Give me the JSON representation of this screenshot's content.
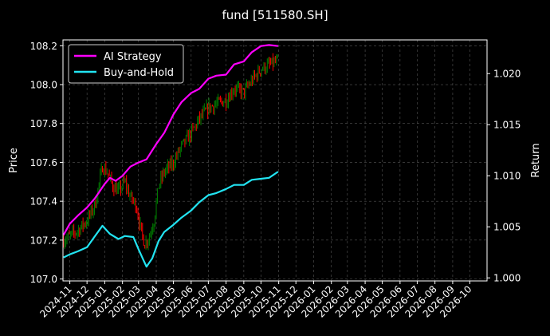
{
  "chart_data": {
    "type": "line",
    "title": "fund [511580.SH]",
    "ylabel_left": "Price",
    "ylabel_right": "Return",
    "x_ticks": [
      "2024-11",
      "2024-12",
      "2025-01",
      "2025-02",
      "2025-03",
      "2025-04",
      "2025-05",
      "2025-06",
      "2025-07",
      "2025-08",
      "2025-09",
      "2025-10",
      "2025-11",
      "2025-12",
      "2026-01",
      "2026-02",
      "2026-03",
      "2026-04",
      "2026-05",
      "2026-06",
      "2026-07",
      "2026-08",
      "2026-09",
      "2026-10"
    ],
    "xlim": [
      "2024-10-20",
      "2026-10-31"
    ],
    "y_left_ticks": [
      "107.0",
      "107.2",
      "107.4",
      "107.6",
      "107.8",
      "108.0",
      "108.2"
    ],
    "y_left_range": [
      106.99,
      108.23
    ],
    "y_right_ticks": [
      "1.000",
      "1.005",
      "1.010",
      "1.015",
      "1.020"
    ],
    "y_right_range": [
      0.9997,
      1.0233
    ],
    "grid": true,
    "legend_position": "top-left",
    "colors": {
      "ai_strategy": "#ff00ff",
      "buy_and_hold": "#22e4f2",
      "candle_up": "#008000",
      "candle_down": "#ff0000",
      "grid": "#555555",
      "axes": "#ffffff"
    },
    "series": [
      {
        "name": "AI Strategy",
        "axis": "right",
        "color": "#ff00ff",
        "x": [
          "2024-10-21",
          "2024-11-01",
          "2024-11-15",
          "2024-12-01",
          "2024-12-15",
          "2025-01-01",
          "2025-01-10",
          "2025-01-20",
          "2025-02-01",
          "2025-02-15",
          "2025-03-01",
          "2025-03-15",
          "2025-04-01",
          "2025-04-15",
          "2025-05-01",
          "2025-05-15",
          "2025-06-01",
          "2025-06-15",
          "2025-07-01",
          "2025-07-15",
          "2025-08-01",
          "2025-08-15",
          "2025-09-01",
          "2025-09-15",
          "2025-10-01",
          "2025-10-15",
          "2025-10-31"
        ],
        "values": [
          1.0042,
          1.0053,
          1.0061,
          1.0069,
          1.0078,
          1.0092,
          1.0098,
          1.0095,
          1.01,
          1.0109,
          1.0113,
          1.0116,
          1.0131,
          1.0142,
          1.016,
          1.0172,
          1.0181,
          1.0185,
          1.0195,
          1.0198,
          1.0199,
          1.0209,
          1.0212,
          1.0221,
          1.0227,
          1.0228,
          1.0227
        ]
      },
      {
        "name": "Buy-and-Hold",
        "axis": "right",
        "color": "#22e4f2",
        "x": [
          "2024-10-21",
          "2024-11-01",
          "2024-11-15",
          "2024-12-01",
          "2024-12-15",
          "2024-12-28",
          "2025-01-10",
          "2025-01-25",
          "2025-02-05",
          "2025-02-20",
          "2025-03-01",
          "2025-03-10",
          "2025-03-15",
          "2025-03-25",
          "2025-04-05",
          "2025-04-15",
          "2025-05-01",
          "2025-05-15",
          "2025-06-01",
          "2025-06-15",
          "2025-07-01",
          "2025-07-15",
          "2025-08-01",
          "2025-08-15",
          "2025-09-01",
          "2025-09-15",
          "2025-10-01",
          "2025-10-15",
          "2025-10-31"
        ],
        "values": [
          1.002,
          1.0023,
          1.0026,
          1.003,
          1.0041,
          1.0051,
          1.0043,
          1.0038,
          1.0041,
          1.004,
          1.0028,
          1.0017,
          1.0011,
          1.0019,
          1.0036,
          1.0045,
          1.0052,
          1.0059,
          1.0066,
          1.0074,
          1.0081,
          1.0083,
          1.0087,
          1.0091,
          1.0091,
          1.0096,
          1.0097,
          1.0098,
          1.0104
        ]
      },
      {
        "name": "Price",
        "axis": "left",
        "style": "candlestick",
        "x": [
          "2024-10-21",
          "2024-11-01",
          "2024-11-15",
          "2024-12-01",
          "2024-12-15",
          "2024-12-28",
          "2025-01-05",
          "2025-01-15",
          "2025-01-25",
          "2025-02-05",
          "2025-02-15",
          "2025-02-25",
          "2025-03-05",
          "2025-03-12",
          "2025-03-20",
          "2025-03-28",
          "2025-04-05",
          "2025-04-15",
          "2025-05-01",
          "2025-05-15",
          "2025-06-01",
          "2025-06-15",
          "2025-07-01",
          "2025-07-15",
          "2025-08-01",
          "2025-08-15",
          "2025-09-01",
          "2025-09-15",
          "2025-10-01",
          "2025-10-15",
          "2025-10-31"
        ],
        "values": [
          107.2,
          107.22,
          107.25,
          107.3,
          107.38,
          107.58,
          107.55,
          107.48,
          107.45,
          107.5,
          107.42,
          107.38,
          107.25,
          107.18,
          107.22,
          107.3,
          107.48,
          107.55,
          107.6,
          107.68,
          107.75,
          107.82,
          107.88,
          107.9,
          107.92,
          107.98,
          107.96,
          108.02,
          108.08,
          108.1,
          108.12
        ]
      }
    ]
  }
}
